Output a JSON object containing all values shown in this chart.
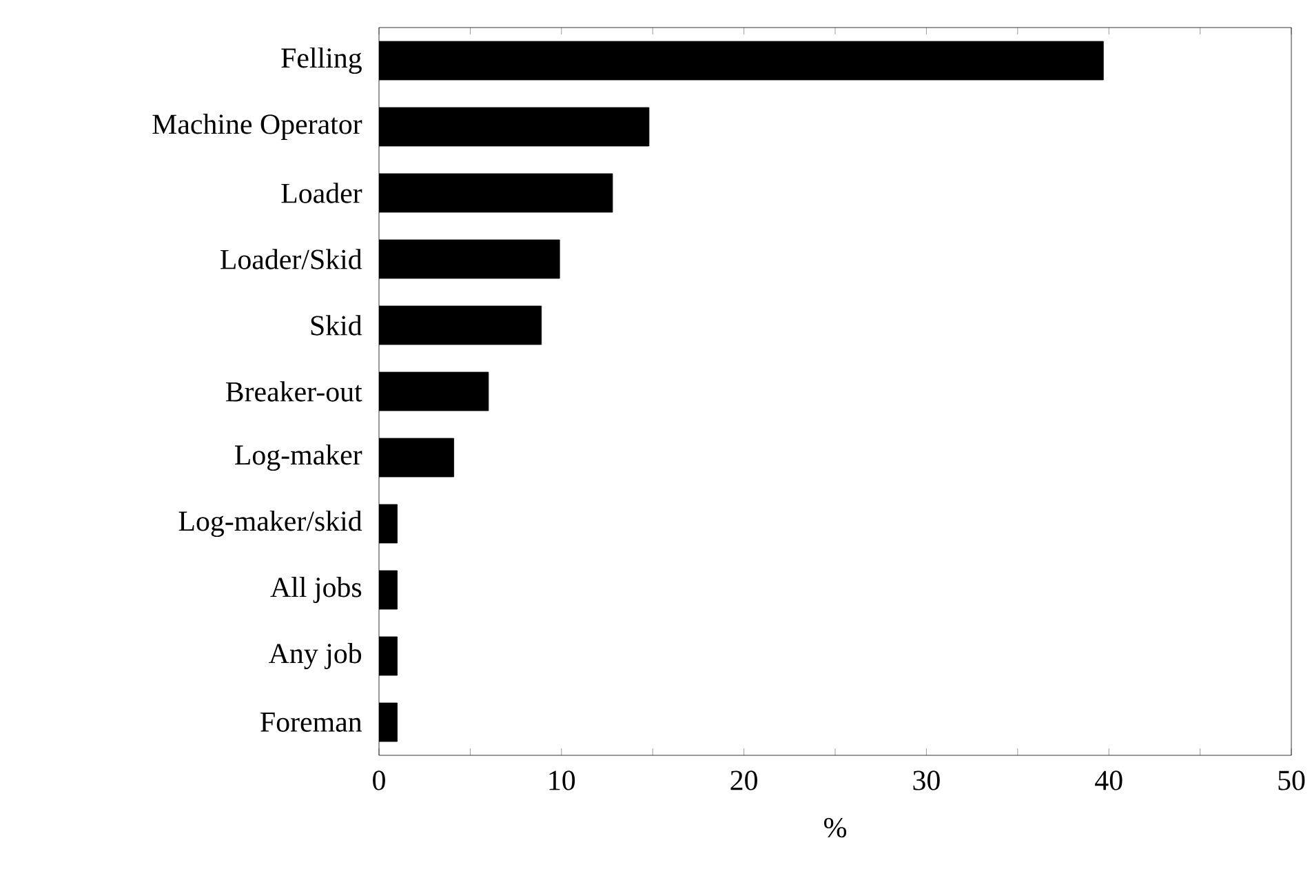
{
  "chart_data": {
    "type": "bar",
    "orientation": "horizontal",
    "xlabel": "%",
    "categories": [
      "Felling",
      "Machine Operator",
      "Loader",
      "Loader/Skid",
      "Skid",
      "Breaker-out",
      "Log-maker",
      "Log-maker/skid",
      "All jobs",
      "Any job",
      "Foreman"
    ],
    "values": [
      39.7,
      14.8,
      12.8,
      9.9,
      8.9,
      6.0,
      4.1,
      1.0,
      1.0,
      1.0,
      1.0
    ],
    "color": "#000000",
    "xlim": [
      0,
      50
    ],
    "xticks": [
      0,
      {
        "value": 5,
        "label": null
      },
      10,
      {
        "value": 15,
        "label": null
      },
      20,
      {
        "value": 25,
        "label": null
      },
      30,
      {
        "value": 35,
        "label": null
      },
      40,
      {
        "value": 45,
        "label": null
      },
      50
    ],
    "grid": false
  }
}
